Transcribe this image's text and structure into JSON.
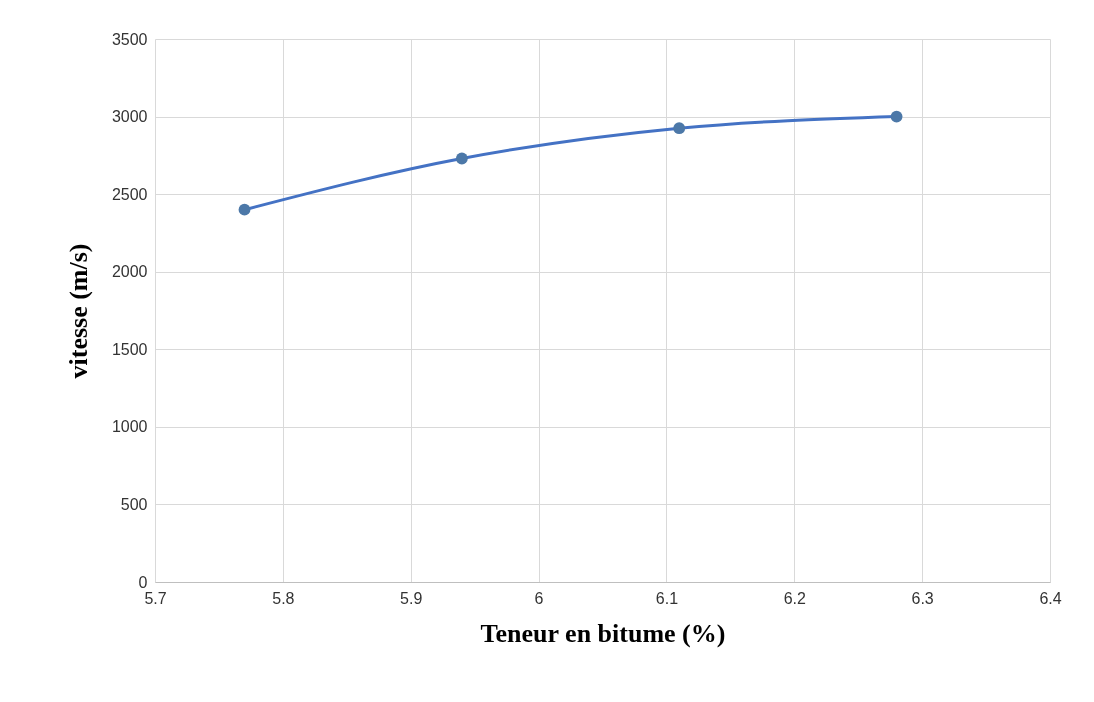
{
  "chart_data": {
    "type": "line",
    "xlabel": "Teneur en bitume (%)",
    "ylabel": "vitesse (m/s)",
    "x": [
      5.77,
      5.94,
      6.11,
      6.28
    ],
    "series": [
      {
        "color": "#4472c4",
        "values": [
          2400,
          2730,
          2925,
          3000
        ]
      }
    ],
    "xlim": [
      5.7,
      6.4
    ],
    "xticks": [
      5.7,
      5.8,
      5.9,
      6,
      6.1,
      6.2,
      6.3,
      6.4
    ],
    "ylim": [
      0,
      3500
    ],
    "yticks": [
      0,
      500,
      1000,
      1500,
      2000,
      2500,
      3000,
      3500
    ],
    "grid": true,
    "marker": "circle",
    "line_style": "solid"
  }
}
